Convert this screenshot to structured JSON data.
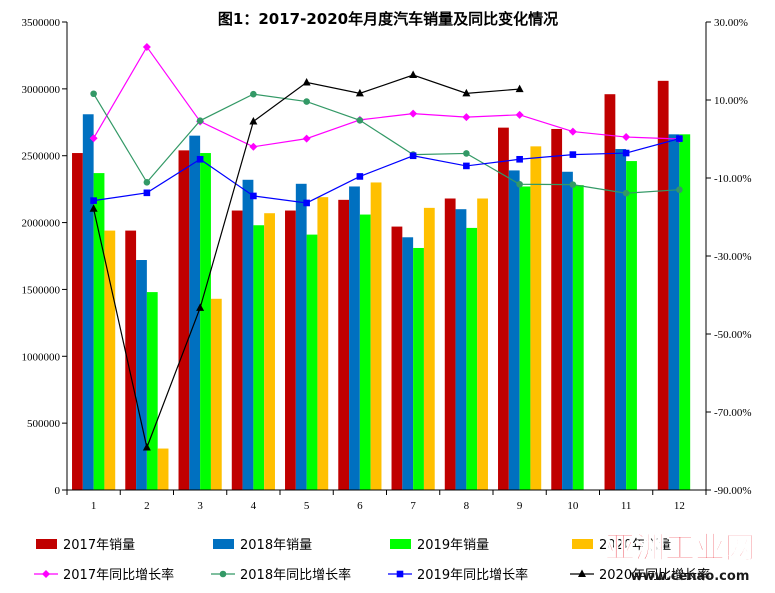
{
  "chart_data": {
    "type": "bar",
    "title": "图1：2017-2020年月度汽车销量及同比变化情况",
    "categories": [
      "1",
      "2",
      "3",
      "4",
      "5",
      "6",
      "7",
      "8",
      "9",
      "10",
      "11",
      "12"
    ],
    "y_left": {
      "min": 0,
      "max": 3500000,
      "step": 500000,
      "tick_labels": [
        "0",
        "500000",
        "1000000",
        "1500000",
        "2000000",
        "2500000",
        "3000000",
        "3500000"
      ]
    },
    "y_right": {
      "min": -90,
      "max": 30,
      "step": 20,
      "tick_labels": [
        "-90.00%",
        "-70.00%",
        "-50.00%",
        "-30.00%",
        "-10.00%",
        "10.00%",
        "30.00%"
      ]
    },
    "bar_series": [
      {
        "name": "2017年销量",
        "color": "#C00000",
        "values": [
          2520000,
          1940000,
          2540000,
          2090000,
          2090000,
          2170000,
          1970000,
          2180000,
          2710000,
          2700000,
          2960000,
          3060000
        ]
      },
      {
        "name": "2018年销量",
        "color": "#0070C0",
        "values": [
          2810000,
          1720000,
          2650000,
          2320000,
          2290000,
          2270000,
          1890000,
          2100000,
          2390000,
          2380000,
          2550000,
          2660000
        ]
      },
      {
        "name": "2019年销量",
        "color": "#00FF00",
        "values": [
          2370000,
          1480000,
          2520000,
          1980000,
          1910000,
          2060000,
          1810000,
          1960000,
          2270000,
          2280000,
          2460000,
          2660000
        ]
      },
      {
        "name": "2020年销量",
        "color": "#FFC000",
        "values": [
          1940000,
          310000,
          1430000,
          2070000,
          2190000,
          2300000,
          2110000,
          2180000,
          2570000,
          null,
          null,
          null
        ]
      }
    ],
    "line_series": [
      {
        "name": "2017年同比增长率",
        "color": "#FF00FF",
        "marker": "diamond",
        "values": [
          0.2,
          23.6,
          4.5,
          -2.0,
          0.1,
          4.9,
          6.5,
          5.6,
          6.2,
          1.9,
          0.5,
          0.0
        ]
      },
      {
        "name": "2018年同比增长率",
        "color": "#339966",
        "marker": "circle",
        "values": [
          11.6,
          -11.1,
          4.7,
          11.5,
          9.6,
          4.8,
          -4.0,
          -3.7,
          -11.6,
          -11.7,
          -13.9,
          -13.0
        ]
      },
      {
        "name": "2019年同比增长率",
        "color": "#0000FF",
        "marker": "square",
        "values": [
          -15.8,
          -13.8,
          -5.2,
          -14.6,
          -16.4,
          -9.6,
          -4.3,
          -6.9,
          -5.2,
          -4.0,
          -3.6,
          0.1
        ]
      },
      {
        "name": "2020年同比增长率",
        "color": "#000000",
        "marker": "triangle",
        "values": [
          -17.9,
          -79.1,
          -43.3,
          4.5,
          14.5,
          11.7,
          16.4,
          11.7,
          12.8,
          null,
          null,
          null
        ]
      }
    ]
  },
  "watermark": {
    "text_cn": "亚洲工业网",
    "text_url": "www.cenao.com"
  }
}
